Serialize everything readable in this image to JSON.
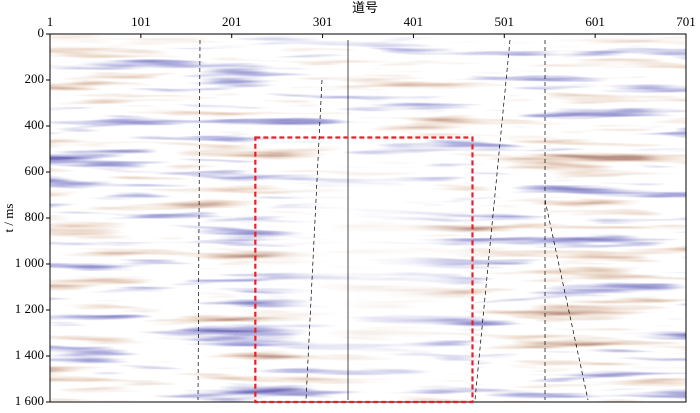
{
  "chart_data": {
    "type": "seismic",
    "x_label": "道号",
    "y_label": "t / ms",
    "xlim": [
      1,
      701
    ],
    "xticks": [
      1,
      101,
      201,
      301,
      401,
      501,
      601,
      701
    ],
    "ylim": [
      0,
      1600
    ],
    "yticks": [
      0,
      200,
      400,
      600,
      800,
      {
        "value": 1000,
        "label": "1 000"
      },
      {
        "value": 1200,
        "label": "1 200"
      },
      {
        "value": 1400,
        "label": "1 400"
      },
      {
        "value": 1600,
        "label": "1 600"
      }
    ],
    "highlight_box": {
      "x": [
        227,
        466
      ],
      "y": [
        450,
        1600
      ],
      "color": "#e8202a"
    }
  }
}
